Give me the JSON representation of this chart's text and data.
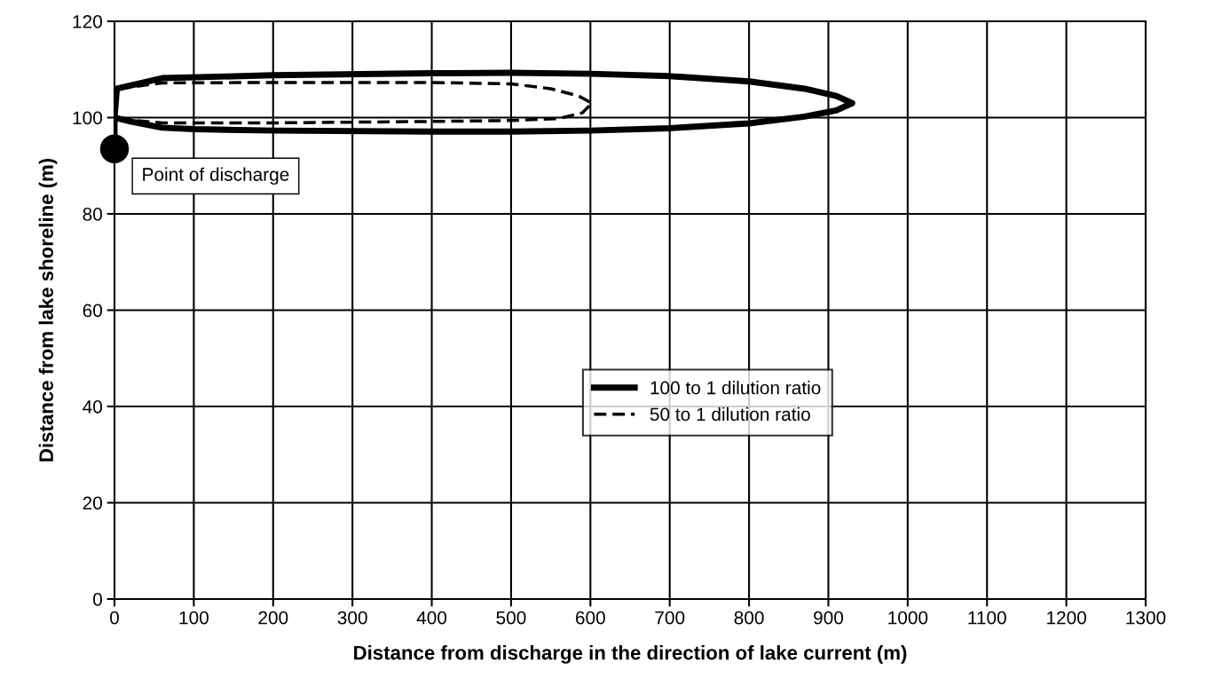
{
  "chart_data": {
    "type": "line",
    "xlabel": "Distance from discharge in the direction of lake current (m)",
    "ylabel": "Distance from lake shoreline (m)",
    "xlim": [
      0,
      1300
    ],
    "xticks": [
      0,
      100,
      200,
      300,
      400,
      500,
      600,
      700,
      800,
      900,
      1000,
      1100,
      1200,
      1300
    ],
    "ylim": [
      0,
      120
    ],
    "yticks": [
      0,
      20,
      40,
      60,
      80,
      100,
      120
    ],
    "grid": true,
    "legend": "right",
    "marker": "none",
    "series": [
      {
        "name": "100 to 1 dilution ratio",
        "color": "#000000",
        "line_style": "solid",
        "x": [
          0,
          0,
          3,
          60,
          200,
          400,
          500,
          600,
          700,
          800,
          870,
          910,
          930,
          910,
          870,
          800,
          700,
          600,
          500,
          400,
          200,
          100,
          60,
          20,
          0
        ],
        "values": [
          93.5,
          100,
          106,
          108.2,
          108.8,
          109.2,
          109.3,
          109.1,
          108.6,
          107.5,
          106,
          104.5,
          103,
          101.5,
          100.2,
          98.8,
          97.8,
          97.3,
          97.1,
          97.1,
          97.3,
          97.6,
          97.9,
          99.2,
          100
        ]
      },
      {
        "name": "50 to 1 dilution ratio",
        "color": "#000000",
        "line_style": "dashed",
        "x": [
          5,
          60,
          200,
          400,
          500,
          550,
          585,
          602,
          590,
          560,
          500,
          400,
          200,
          60,
          20,
          5
        ],
        "values": [
          106,
          107.2,
          107.3,
          107.3,
          107,
          106,
          104.5,
          103,
          101,
          99.8,
          99.4,
          99.2,
          98.9,
          98.9,
          99.5,
          100
        ]
      },
      {
        "type": "scatter",
        "color": "#000000",
        "marker": "circle",
        "x": [
          0
        ],
        "values": [
          93.5
        ]
      }
    ],
    "annotations": [
      {
        "text": "Point of discharge",
        "x": 0,
        "y": 93.5
      }
    ]
  }
}
